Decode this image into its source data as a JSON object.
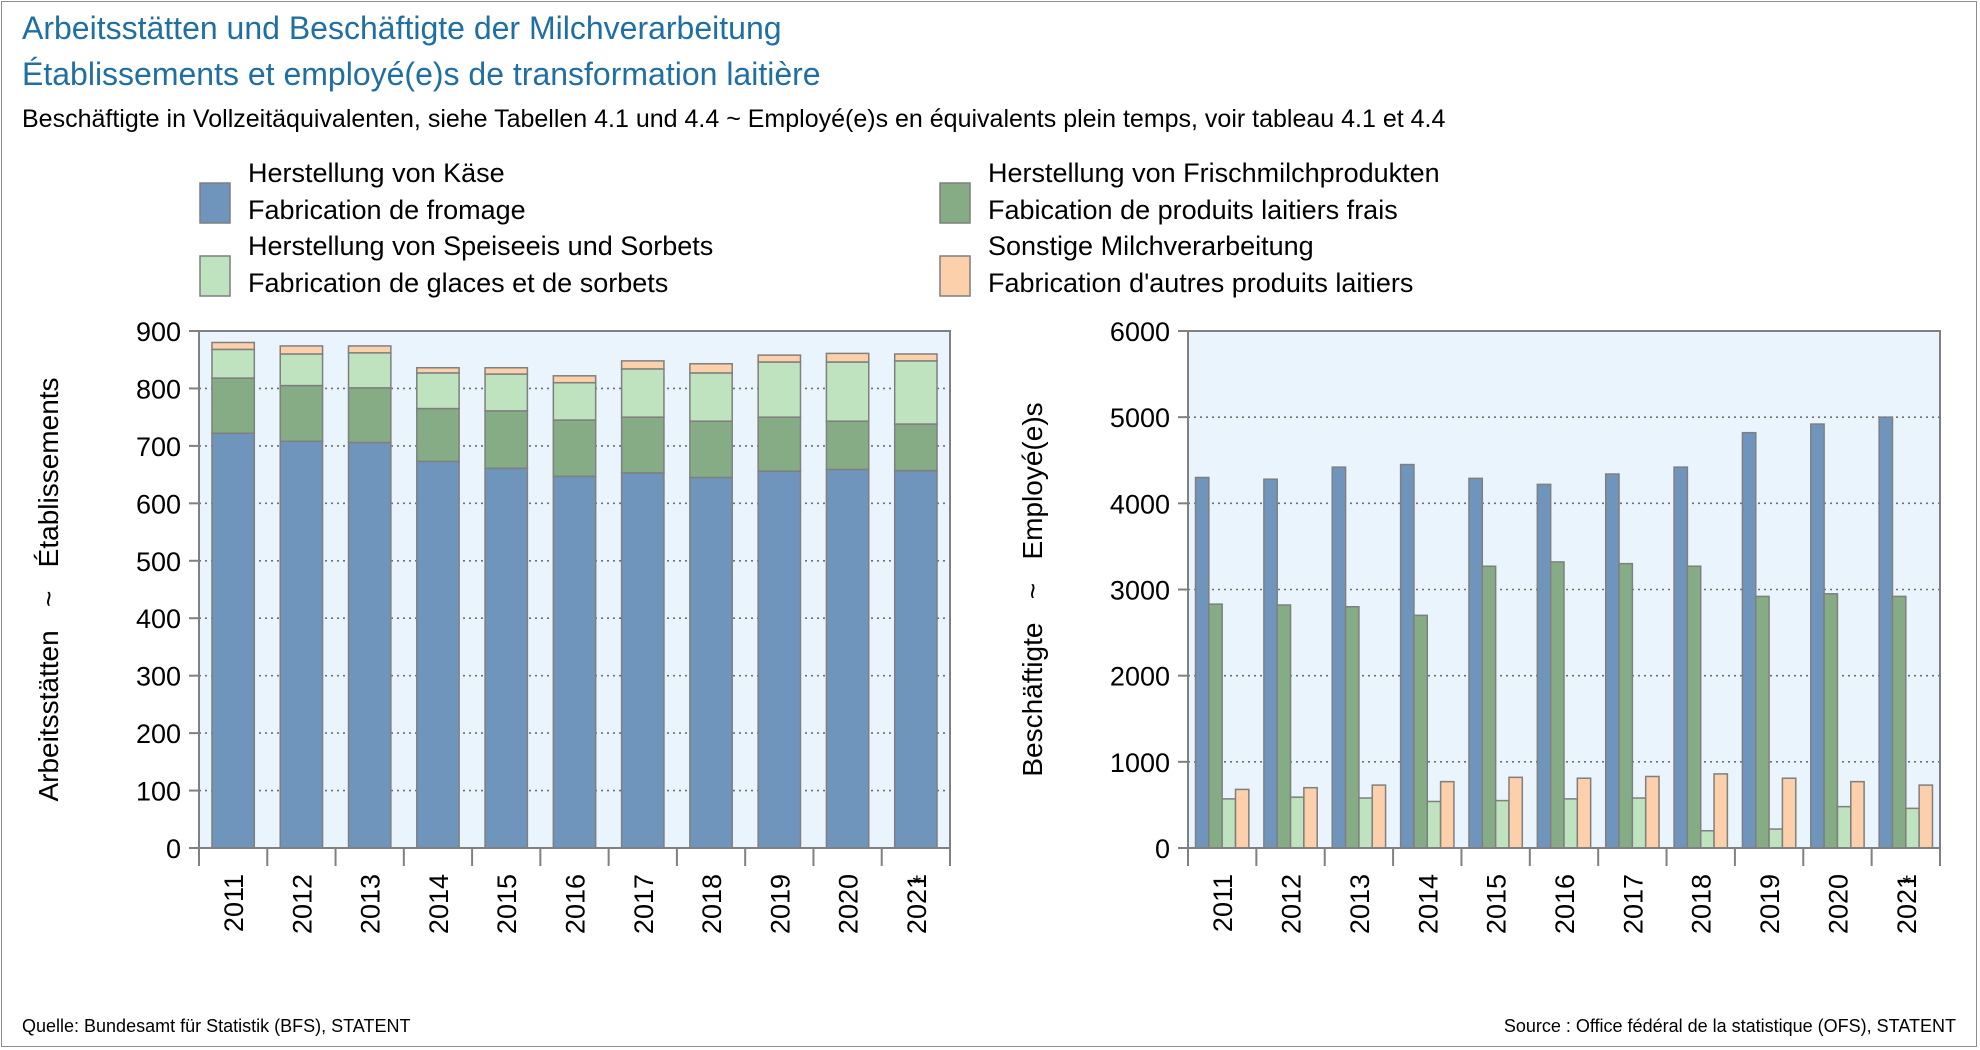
{
  "title": "Arbeitsstätten und Beschäftigte der Milchverarbeitung",
  "title2": "Établissements et employé(e)s de transformation laitière",
  "subtitle": "Beschäftigte in Vollzeitäquivalenten, siehe Tabellen 4.1 und 4.4  ~  Employé(e)s en équivalents plein temps, voir tableau 4.1 et 4.4",
  "source_left": "Quelle: Bundesamt für Statistik (BFS), STATENT",
  "source_right": "Source : Office fédéral de la statistique (OFS), STATENT",
  "legend": [
    {
      "line1": "Herstellung von Käse",
      "line2": "Fabrication de fromage",
      "color": "#7095bd"
    },
    {
      "line1": "Herstellung von Frischmilchprodukten",
      "line2": "Fabication de produits laitiers frais",
      "color": "#86ac86"
    },
    {
      "line1": "Herstellung von Speiseeis und Sorbets",
      "line2": "Fabrication de glaces et de sorbets",
      "color": "#bfe3bf"
    },
    {
      "line1": "Sonstige Milchverarbeitung",
      "line2": "Fabrication d'autres produits laitiers",
      "color": "#fcd0aa"
    }
  ],
  "colors": {
    "plot_bg": "#eaf4fd",
    "axis": "#808080",
    "grid": "#707070",
    "title": "#1f6fa3"
  },
  "chart_data": [
    {
      "type": "bar",
      "stacked": true,
      "ylabel": "Arbeitsstätten   ~   Établissements",
      "ylim": [
        0,
        900
      ],
      "yticks": [
        0,
        100,
        200,
        300,
        400,
        500,
        600,
        700,
        800,
        900
      ],
      "categories": [
        "2011",
        "2012",
        "2013",
        "2014",
        "2015",
        "2016",
        "2017",
        "2018",
        "2019",
        "2020",
        "2021"
      ],
      "category_marks": [
        "",
        "",
        "",
        "",
        "",
        "",
        "",
        "",
        "",
        "",
        "*"
      ],
      "grid": "horizontal dotted",
      "series": [
        {
          "name": "Herstellung von Käse",
          "values": [
            722,
            708,
            706,
            673,
            661,
            647,
            653,
            645,
            656,
            659,
            657
          ]
        },
        {
          "name": "Herstellung von Frischmilchprodukten",
          "values": [
            96,
            97,
            95,
            92,
            100,
            98,
            97,
            98,
            94,
            84,
            81
          ]
        },
        {
          "name": "Herstellung von Speiseeis und Sorbets",
          "values": [
            50,
            55,
            61,
            62,
            64,
            65,
            84,
            84,
            96,
            103,
            110
          ]
        },
        {
          "name": "Sonstige Milchverarbeitung",
          "values": [
            12,
            14,
            12,
            9,
            11,
            12,
            14,
            16,
            12,
            15,
            12
          ]
        }
      ]
    },
    {
      "type": "bar",
      "stacked": false,
      "ylabel": "Beschäftigte   ~   Employé(e)s",
      "ylim": [
        0,
        6000
      ],
      "yticks": [
        0,
        1000,
        2000,
        3000,
        4000,
        5000,
        6000
      ],
      "categories": [
        "2011",
        "2012",
        "2013",
        "2014",
        "2015",
        "2016",
        "2017",
        "2018",
        "2019",
        "2020",
        "2021"
      ],
      "category_marks": [
        "",
        "",
        "",
        "",
        "",
        "",
        "",
        "",
        "",
        "",
        "*"
      ],
      "grid": "horizontal dotted",
      "series": [
        {
          "name": "Herstellung von Käse",
          "values": [
            4300,
            4280,
            4420,
            4450,
            4290,
            4220,
            4340,
            4420,
            4820,
            4920,
            5000
          ]
        },
        {
          "name": "Herstellung von Frischmilchprodukten",
          "values": [
            2830,
            2820,
            2800,
            2700,
            3270,
            3320,
            3300,
            3270,
            2920,
            2950,
            2920
          ]
        },
        {
          "name": "Herstellung von Speiseeis und Sorbets",
          "values": [
            570,
            590,
            580,
            540,
            550,
            570,
            580,
            200,
            220,
            480,
            460
          ]
        },
        {
          "name": "Sonstige Milchverarbeitung",
          "values": [
            680,
            700,
            730,
            770,
            820,
            810,
            830,
            860,
            810,
            770,
            730
          ]
        }
      ]
    }
  ]
}
